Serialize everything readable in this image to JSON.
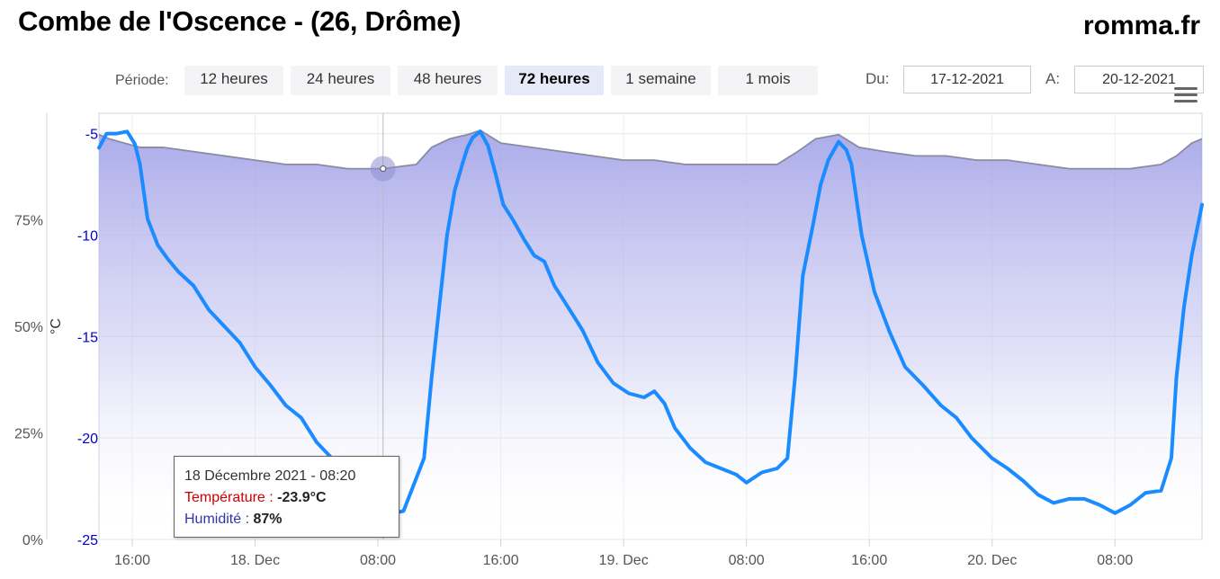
{
  "header": {
    "title": "Combe de l'Oscence - (26, Drôme)",
    "brand": "romma.fr"
  },
  "period": {
    "label": "Période:",
    "buttons": [
      {
        "label": "12 heures",
        "active": false
      },
      {
        "label": "24 heures",
        "active": false
      },
      {
        "label": "48 heures",
        "active": false
      },
      {
        "label": "72 heures",
        "active": true
      },
      {
        "label": "1 semaine",
        "active": false
      },
      {
        "label": "1 mois",
        "active": false
      }
    ]
  },
  "range": {
    "from_label": "Du:",
    "from_value": "17-12-2021",
    "to_label": "A:",
    "to_value": "20-12-2021"
  },
  "tooltip": {
    "title": "18 Décembre 2021 - 08:20",
    "temp_label": "Température :",
    "temp_value": "-23.9°C",
    "hum_label": "Humidité :",
    "hum_value": "87%"
  },
  "chart_data": {
    "type": "line",
    "x_start": "2021-12-17 13:50",
    "x_end": "2021-12-20 13:40",
    "x_ticks": [
      {
        "t": "2021-12-17 16:00",
        "label": "16:00"
      },
      {
        "t": "2021-12-18 00:00",
        "label": "18. Dec"
      },
      {
        "t": "2021-12-18 08:00",
        "label": "08:00"
      },
      {
        "t": "2021-12-18 16:00",
        "label": "16:00"
      },
      {
        "t": "2021-12-19 00:00",
        "label": "19. Dec"
      },
      {
        "t": "2021-12-19 08:00",
        "label": "08:00"
      },
      {
        "t": "2021-12-19 16:00",
        "label": "16:00"
      },
      {
        "t": "2021-12-20 00:00",
        "label": "20. Dec"
      },
      {
        "t": "2021-12-20 08:00",
        "label": "08:00"
      }
    ],
    "y_temp": {
      "label": "°C",
      "min": -25,
      "max": -4.0,
      "ticks": [
        -5,
        -10,
        -15,
        -20,
        -25
      ],
      "color": "#0000cc"
    },
    "y_hum": {
      "label": "",
      "min": 0,
      "max": 100,
      "ticks": [
        "0%",
        "25%",
        "50%",
        "75%"
      ],
      "tick_values": [
        0,
        25,
        50,
        75
      ],
      "color": "#555555"
    },
    "series": [
      {
        "name": "Température",
        "color": "#1a8cff",
        "points": [
          [
            "2021-12-17 13:50",
            -5.7
          ],
          [
            "2021-12-17 14:20",
            -5.0
          ],
          [
            "2021-12-17 15:00",
            -5.0
          ],
          [
            "2021-12-17 15:40",
            -4.9
          ],
          [
            "2021-12-17 16:10",
            -5.5
          ],
          [
            "2021-12-17 16:30",
            -6.5
          ],
          [
            "2021-12-17 17:00",
            -9.2
          ],
          [
            "2021-12-17 17:40",
            -10.5
          ],
          [
            "2021-12-17 18:20",
            -11.2
          ],
          [
            "2021-12-17 19:00",
            -11.8
          ],
          [
            "2021-12-17 20:00",
            -12.5
          ],
          [
            "2021-12-17 21:00",
            -13.7
          ],
          [
            "2021-12-17 22:00",
            -14.5
          ],
          [
            "2021-12-17 23:00",
            -15.3
          ],
          [
            "2021-12-18 00:00",
            -16.5
          ],
          [
            "2021-12-18 01:00",
            -17.4
          ],
          [
            "2021-12-18 02:00",
            -18.4
          ],
          [
            "2021-12-18 03:00",
            -19.0
          ],
          [
            "2021-12-18 04:00",
            -20.2
          ],
          [
            "2021-12-18 05:00",
            -21.0
          ],
          [
            "2021-12-18 06:00",
            -22.0
          ],
          [
            "2021-12-18 07:00",
            -22.9
          ],
          [
            "2021-12-18 08:20",
            -23.9
          ],
          [
            "2021-12-18 09:00",
            -23.7
          ],
          [
            "2021-12-18 09:40",
            -23.6
          ],
          [
            "2021-12-18 10:20",
            -22.3
          ],
          [
            "2021-12-18 11:00",
            -21.0
          ],
          [
            "2021-12-18 11:30",
            -17.0
          ],
          [
            "2021-12-18 12:00",
            -13.5
          ],
          [
            "2021-12-18 12:30",
            -10.0
          ],
          [
            "2021-12-18 13:00",
            -7.8
          ],
          [
            "2021-12-18 13:30",
            -6.5
          ],
          [
            "2021-12-18 13:50",
            -5.7
          ],
          [
            "2021-12-18 14:10",
            -5.2
          ],
          [
            "2021-12-18 14:40",
            -4.9
          ],
          [
            "2021-12-18 15:10",
            -5.6
          ],
          [
            "2021-12-18 15:40",
            -7.0
          ],
          [
            "2021-12-18 16:10",
            -8.5
          ],
          [
            "2021-12-18 16:50",
            -9.3
          ],
          [
            "2021-12-18 17:30",
            -10.2
          ],
          [
            "2021-12-18 18:10",
            -11.0
          ],
          [
            "2021-12-18 18:50",
            -11.3
          ],
          [
            "2021-12-18 19:30",
            -12.5
          ],
          [
            "2021-12-18 20:20",
            -13.5
          ],
          [
            "2021-12-18 21:20",
            -14.7
          ],
          [
            "2021-12-18 22:20",
            -16.3
          ],
          [
            "2021-12-18 23:20",
            -17.3
          ],
          [
            "2021-12-19 00:20",
            -17.8
          ],
          [
            "2021-12-19 01:20",
            -18.0
          ],
          [
            "2021-12-19 02:00",
            -17.7
          ],
          [
            "2021-12-19 02:40",
            -18.3
          ],
          [
            "2021-12-19 03:20",
            -19.5
          ],
          [
            "2021-12-19 04:20",
            -20.5
          ],
          [
            "2021-12-19 05:20",
            -21.2
          ],
          [
            "2021-12-19 06:20",
            -21.5
          ],
          [
            "2021-12-19 07:20",
            -21.8
          ],
          [
            "2021-12-19 08:00",
            -22.2
          ],
          [
            "2021-12-19 09:00",
            -21.7
          ],
          [
            "2021-12-19 10:00",
            -21.5
          ],
          [
            "2021-12-19 10:40",
            -21.0
          ],
          [
            "2021-12-19 11:10",
            -17.0
          ],
          [
            "2021-12-19 11:40",
            -12.0
          ],
          [
            "2021-12-19 12:20",
            -9.5
          ],
          [
            "2021-12-19 12:50",
            -7.5
          ],
          [
            "2021-12-19 13:20",
            -6.3
          ],
          [
            "2021-12-19 14:00",
            -5.4
          ],
          [
            "2021-12-19 14:30",
            -5.8
          ],
          [
            "2021-12-19 14:50",
            -6.5
          ],
          [
            "2021-12-19 15:30",
            -10.0
          ],
          [
            "2021-12-19 16:20",
            -12.8
          ],
          [
            "2021-12-19 17:20",
            -14.8
          ],
          [
            "2021-12-19 18:20",
            -16.5
          ],
          [
            "2021-12-19 19:30",
            -17.4
          ],
          [
            "2021-12-19 20:40",
            -18.4
          ],
          [
            "2021-12-19 21:40",
            -19.0
          ],
          [
            "2021-12-19 22:40",
            -20.0
          ],
          [
            "2021-12-20 00:00",
            -21.0
          ],
          [
            "2021-12-20 01:00",
            -21.5
          ],
          [
            "2021-12-20 02:00",
            -22.1
          ],
          [
            "2021-12-20 03:00",
            -22.8
          ],
          [
            "2021-12-20 04:00",
            -23.2
          ],
          [
            "2021-12-20 05:00",
            -23.0
          ],
          [
            "2021-12-20 06:00",
            -23.0
          ],
          [
            "2021-12-20 07:00",
            -23.3
          ],
          [
            "2021-12-20 08:00",
            -23.7
          ],
          [
            "2021-12-20 09:00",
            -23.3
          ],
          [
            "2021-12-20 10:00",
            -22.7
          ],
          [
            "2021-12-20 11:00",
            -22.6
          ],
          [
            "2021-12-20 11:40",
            -21.0
          ],
          [
            "2021-12-20 12:00",
            -17.0
          ],
          [
            "2021-12-20 12:30",
            -13.5
          ],
          [
            "2021-12-20 13:00",
            -11.0
          ],
          [
            "2021-12-20 13:40",
            -8.5
          ]
        ]
      },
      {
        "name": "Humidité",
        "color": "#8a8aa0",
        "fill": "#aaaaee",
        "points": [
          [
            "2021-12-17 13:50",
            95
          ],
          [
            "2021-12-17 14:30",
            94
          ],
          [
            "2021-12-17 15:30",
            93
          ],
          [
            "2021-12-17 16:30",
            92
          ],
          [
            "2021-12-17 18:00",
            92
          ],
          [
            "2021-12-17 20:00",
            91
          ],
          [
            "2021-12-17 22:00",
            90
          ],
          [
            "2021-12-18 00:00",
            89
          ],
          [
            "2021-12-18 02:00",
            88
          ],
          [
            "2021-12-18 04:00",
            88
          ],
          [
            "2021-12-18 06:00",
            87
          ],
          [
            "2021-12-18 08:20",
            87
          ],
          [
            "2021-12-18 10:30",
            88
          ],
          [
            "2021-12-18 11:30",
            92
          ],
          [
            "2021-12-18 12:40",
            94
          ],
          [
            "2021-12-18 13:50",
            95
          ],
          [
            "2021-12-18 14:40",
            96
          ],
          [
            "2021-12-18 16:00",
            93
          ],
          [
            "2021-12-18 18:00",
            92
          ],
          [
            "2021-12-18 20:00",
            91
          ],
          [
            "2021-12-18 22:00",
            90
          ],
          [
            "2021-12-19 00:00",
            89
          ],
          [
            "2021-12-19 02:00",
            89
          ],
          [
            "2021-12-19 04:00",
            88
          ],
          [
            "2021-12-19 06:00",
            88
          ],
          [
            "2021-12-19 08:00",
            88
          ],
          [
            "2021-12-19 10:00",
            88
          ],
          [
            "2021-12-19 11:20",
            91
          ],
          [
            "2021-12-19 12:30",
            94
          ],
          [
            "2021-12-19 14:00",
            95
          ],
          [
            "2021-12-19 15:20",
            92
          ],
          [
            "2021-12-19 17:00",
            91
          ],
          [
            "2021-12-19 19:00",
            90
          ],
          [
            "2021-12-19 21:00",
            90
          ],
          [
            "2021-12-19 23:00",
            89
          ],
          [
            "2021-12-20 01:00",
            89
          ],
          [
            "2021-12-20 03:00",
            88
          ],
          [
            "2021-12-20 05:00",
            87
          ],
          [
            "2021-12-20 07:00",
            87
          ],
          [
            "2021-12-20 09:00",
            87
          ],
          [
            "2021-12-20 11:00",
            88
          ],
          [
            "2021-12-20 12:00",
            90
          ],
          [
            "2021-12-20 13:00",
            93
          ],
          [
            "2021-12-20 13:40",
            94
          ]
        ]
      }
    ],
    "hover": {
      "t": "2021-12-18 08:20",
      "temp": -23.9,
      "hum": 87
    }
  }
}
